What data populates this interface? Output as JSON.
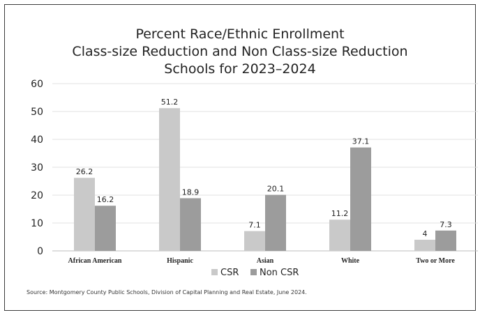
{
  "title_lines": [
    "Percent Race/Ethnic Enrollment",
    "Class-size Reduction and Non Class-size Reduction",
    "Schools for 2023–2024"
  ],
  "source": "Source: Montgomery County Public Schools, Division of Capital Planning and Real Estate, June 2024.",
  "colors": {
    "csr": "#c9c9c9",
    "non_csr": "#9c9c9c"
  },
  "chart_data": {
    "type": "bar",
    "title": "Percent Race/Ethnic Enrollment Class-size Reduction and Non Class-size Reduction Schools for 2023–2024",
    "categories": [
      "African American",
      "Hispanic",
      "Asian",
      "White",
      "Two or More"
    ],
    "series": [
      {
        "name": "CSR",
        "values": [
          26.2,
          51.2,
          7.1,
          11.2,
          4
        ]
      },
      {
        "name": "Non CSR",
        "values": [
          16.2,
          18.9,
          20.1,
          37.1,
          7.3
        ]
      }
    ],
    "ylim": [
      0,
      60
    ],
    "yticks": [
      0,
      10,
      20,
      30,
      40,
      50,
      60
    ],
    "grid": true,
    "legend": "bottom"
  }
}
